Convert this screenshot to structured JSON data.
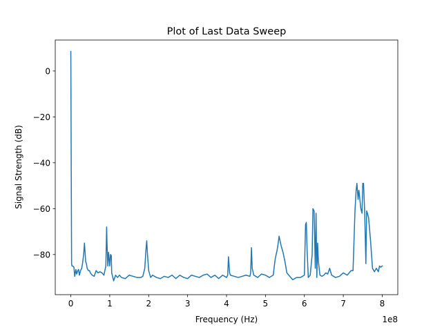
{
  "chart_data": {
    "type": "line",
    "title": "Plot of Last Data Sweep",
    "xlabel": "Frequency (Hz)",
    "ylabel": "Signal Strength (dB)",
    "x_offset_label": "1e8",
    "xlim": [
      -0.4,
      8.4
    ],
    "ylim": [
      -97.5,
      13.5
    ],
    "xticks": [
      0,
      1,
      2,
      3,
      4,
      5,
      6,
      7,
      8
    ],
    "xtick_labels": [
      "0",
      "1",
      "2",
      "3",
      "4",
      "5",
      "6",
      "7",
      "8"
    ],
    "yticks": [
      0,
      -20,
      -40,
      -60,
      -80
    ],
    "ytick_labels": [
      "0",
      "−20",
      "−40",
      "−60",
      "−80"
    ],
    "grid": false,
    "line_color": "#1f77b4",
    "series": [
      {
        "x": [
          0.0,
          0.01,
          0.02,
          0.03,
          0.05,
          0.08,
          0.1,
          0.13,
          0.15,
          0.18,
          0.2,
          0.22,
          0.25,
          0.28,
          0.3,
          0.33,
          0.35,
          0.37,
          0.38,
          0.4,
          0.42,
          0.45,
          0.48,
          0.5,
          0.55,
          0.6,
          0.65,
          0.7,
          0.75,
          0.8,
          0.85,
          0.9,
          0.92,
          0.93,
          0.95,
          0.97,
          1.0,
          1.02,
          1.04,
          1.05,
          1.08,
          1.1,
          1.15,
          1.2,
          1.25,
          1.3,
          1.4,
          1.5,
          1.6,
          1.7,
          1.8,
          1.85,
          1.9,
          1.93,
          1.95,
          1.97,
          2.0,
          2.05,
          2.1,
          2.2,
          2.3,
          2.4,
          2.5,
          2.6,
          2.7,
          2.8,
          2.9,
          3.0,
          3.1,
          3.2,
          3.3,
          3.4,
          3.5,
          3.6,
          3.7,
          3.8,
          3.9,
          4.0,
          4.03,
          4.05,
          4.08,
          4.1,
          4.2,
          4.3,
          4.4,
          4.5,
          4.6,
          4.62,
          4.64,
          4.66,
          4.7,
          4.8,
          4.9,
          5.0,
          5.1,
          5.15,
          5.2,
          5.25,
          5.3,
          5.32,
          5.35,
          5.4,
          5.45,
          5.5,
          5.55,
          5.6,
          5.7,
          5.8,
          5.9,
          6.0,
          6.03,
          6.05,
          6.07,
          6.1,
          6.15,
          6.2,
          6.22,
          6.25,
          6.28,
          6.3,
          6.32,
          6.34,
          6.36,
          6.4,
          6.45,
          6.5,
          6.55,
          6.6,
          6.65,
          6.7,
          6.8,
          6.9,
          7.0,
          7.1,
          7.2,
          7.25,
          7.3,
          7.33,
          7.35,
          7.38,
          7.4,
          7.42,
          7.45,
          7.48,
          7.5,
          7.52,
          7.55,
          7.58,
          7.6,
          7.62,
          7.65,
          7.7,
          7.75,
          7.8,
          7.85,
          7.9,
          7.93,
          7.96,
          8.0
        ],
        "y": [
          8.5,
          -40,
          -84,
          -85,
          -85,
          -85.5,
          -89.5,
          -86.5,
          -88.5,
          -87,
          -86.5,
          -89,
          -87,
          -86,
          -84,
          -80,
          -75,
          -80,
          -83,
          -84,
          -86,
          -87,
          -87,
          -88,
          -89,
          -89.5,
          -87,
          -88,
          -87.5,
          -88,
          -89,
          -85,
          -68,
          -75,
          -85,
          -79,
          -85,
          -80,
          -80.5,
          -88,
          -90,
          -91.5,
          -89,
          -90,
          -89,
          -90,
          -90.5,
          -89,
          -89.5,
          -90,
          -90,
          -89.5,
          -86,
          -78,
          -74,
          -80,
          -87,
          -90,
          -89,
          -90,
          -90.5,
          -89.5,
          -90,
          -89,
          -90.5,
          -89,
          -90,
          -90.5,
          -89,
          -89.5,
          -90,
          -89,
          -88.5,
          -90,
          -89,
          -90.5,
          -89,
          -90,
          -89,
          -81,
          -88,
          -89,
          -89.5,
          -90,
          -89.5,
          -89,
          -89.5,
          -88,
          -77,
          -86,
          -89,
          -90,
          -88.5,
          -89,
          -90,
          -89.5,
          -89,
          -82,
          -78,
          -76,
          -72,
          -76,
          -79,
          -83,
          -88,
          -89,
          -91,
          -90,
          -90,
          -89,
          -67,
          -66,
          -78,
          -90,
          -89,
          -80,
          -60,
          -61,
          -86,
          -62,
          -90,
          -75,
          -83,
          -89,
          -89.5,
          -89,
          -88,
          -88.5,
          -86,
          -89,
          -90,
          -89.5,
          -88,
          -89,
          -87,
          -87,
          -61,
          -52,
          -49,
          -56,
          -52,
          -55,
          -60,
          -62,
          -49,
          -49,
          -62,
          -84,
          -61,
          -62,
          -64,
          -74,
          -86,
          -87.5,
          -86,
          -87.5,
          -85,
          -85.5,
          -85
        ]
      }
    ]
  }
}
